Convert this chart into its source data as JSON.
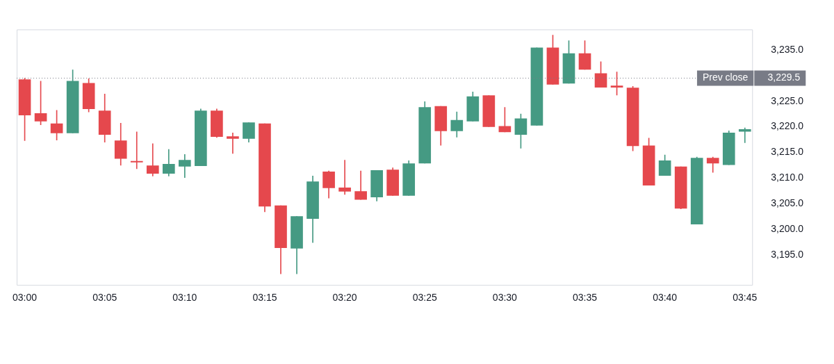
{
  "chart_data": {
    "type": "candlestick",
    "categories": [
      "03:00",
      null,
      null,
      null,
      null,
      "03:05",
      null,
      null,
      null,
      null,
      "03:10",
      null,
      null,
      null,
      null,
      "03:15",
      null,
      null,
      null,
      null,
      "03:20",
      null,
      null,
      null,
      null,
      "03:25",
      null,
      null,
      null,
      null,
      "03:30",
      null,
      null,
      null,
      null,
      "03:35",
      null,
      null,
      null,
      null,
      "03:40",
      null,
      null,
      null,
      null,
      "03:45"
    ],
    "ohlc": [
      [
        3229.2,
        3229.5,
        3217.3,
        3222.3
      ],
      [
        3222.6,
        3228.9,
        3220.4,
        3221.1
      ],
      [
        3220.6,
        3223.2,
        3217.4,
        3218.8
      ],
      [
        3218.8,
        3231.1,
        3218.8,
        3228.9
      ],
      [
        3228.5,
        3229.4,
        3222.9,
        3223.5
      ],
      [
        3223.1,
        3226.4,
        3217.0,
        3218.5
      ],
      [
        3217.3,
        3220.7,
        3212.5,
        3213.8
      ],
      [
        3213.3,
        3219.0,
        3211.8,
        3213.1
      ],
      [
        3212.4,
        3216.7,
        3210.4,
        3210.9
      ],
      [
        3210.9,
        3215.6,
        3210.4,
        3212.7
      ],
      [
        3212.3,
        3214.6,
        3210.1,
        3213.5
      ],
      [
        3212.4,
        3223.5,
        3212.4,
        3223.1
      ],
      [
        3223.1,
        3223.5,
        3217.9,
        3218.1
      ],
      [
        3218.1,
        3218.8,
        3214.8,
        3217.7
      ],
      [
        3217.7,
        3220.8,
        3217.0,
        3220.8
      ],
      [
        3220.6,
        3220.6,
        3203.4,
        3204.5
      ],
      [
        3204.6,
        3204.6,
        3191.3,
        3196.4
      ],
      [
        3196.3,
        3202.5,
        3191.3,
        3202.5
      ],
      [
        3202.1,
        3210.4,
        3197.4,
        3209.3
      ],
      [
        3211.2,
        3211.4,
        3206.1,
        3208.1
      ],
      [
        3208.1,
        3213.5,
        3206.8,
        3207.4
      ],
      [
        3207.4,
        3211.4,
        3205.8,
        3205.8
      ],
      [
        3206.3,
        3211.5,
        3205.5,
        3211.5
      ],
      [
        3211.6,
        3212.0,
        3206.6,
        3206.6
      ],
      [
        3206.6,
        3213.4,
        3206.6,
        3212.8
      ],
      [
        3212.9,
        3224.9,
        3212.9,
        3223.8
      ],
      [
        3224.0,
        3224.0,
        3216.4,
        3219.2
      ],
      [
        3219.2,
        3222.9,
        3218.0,
        3221.3
      ],
      [
        3221.1,
        3226.8,
        3221.1,
        3225.9
      ],
      [
        3226.1,
        3226.1,
        3220.0,
        3220.0
      ],
      [
        3220.1,
        3223.8,
        3219.0,
        3219.0
      ],
      [
        3218.5,
        3222.5,
        3215.8,
        3221.6
      ],
      [
        3220.3,
        3235.4,
        3220.3,
        3235.4
      ],
      [
        3235.4,
        3237.9,
        3228.3,
        3228.3
      ],
      [
        3228.5,
        3236.8,
        3228.5,
        3234.3
      ],
      [
        3234.3,
        3236.8,
        3231.2,
        3231.2
      ],
      [
        3230.4,
        3232.7,
        3227.7,
        3227.7
      ],
      [
        3228.0,
        3230.7,
        3226.2,
        3227.7
      ],
      [
        3227.6,
        3227.9,
        3215.3,
        3216.3
      ],
      [
        3216.3,
        3217.8,
        3208.6,
        3208.6
      ],
      [
        3210.5,
        3214.5,
        3210.5,
        3213.4
      ],
      [
        3212.2,
        3212.2,
        3204.0,
        3204.1
      ],
      [
        3201.0,
        3214.1,
        3201.0,
        3213.9
      ],
      [
        3213.9,
        3214.1,
        3211.1,
        3212.9
      ],
      [
        3212.6,
        3219.2,
        3212.6,
        3218.8
      ],
      [
        3219.1,
        3219.8,
        3216.9,
        3219.5
      ]
    ],
    "colors": [
      "#e5484d",
      "#e5484d",
      "#e5484d",
      "#459a83",
      "#e5484d",
      "#e5484d",
      "#e5484d",
      "#e5484d",
      "#e5484d",
      "#459a83",
      "#459a83",
      "#459a83",
      "#e5484d",
      "#e5484d",
      "#459a83",
      "#e5484d",
      "#e5484d",
      "#459a83",
      "#459a83",
      "#e5484d",
      "#e5484d",
      "#e5484d",
      "#459a83",
      "#e5484d",
      "#459a83",
      "#459a83",
      "#e5484d",
      "#459a83",
      "#459a83",
      "#e5484d",
      "#e5484d",
      "#459a83",
      "#459a83",
      "#e5484d",
      "#459a83",
      "#e5484d",
      "#e5484d",
      "#e5484d",
      "#e5484d",
      "#e5484d",
      "#459a83",
      "#e5484d",
      "#459a83",
      "#e5484d",
      "#459a83",
      "#459a83"
    ],
    "ylim": [
      3189,
      3239
    ],
    "yticks": [
      {
        "value": 3195,
        "label": "3,195.0"
      },
      {
        "value": 3200,
        "label": "3,200.0"
      },
      {
        "value": 3205,
        "label": "3,205.0"
      },
      {
        "value": 3210,
        "label": "3,210.0"
      },
      {
        "value": 3215,
        "label": "3,215.0"
      },
      {
        "value": 3220,
        "label": "3,220.0"
      },
      {
        "value": 3225,
        "label": "3,225.0"
      },
      {
        "value": 3235,
        "label": "3,235.0"
      }
    ],
    "ref_lines": [
      {
        "axis": "y",
        "value": 3229.5,
        "label": "Prev close",
        "color": "#787b86",
        "line_style": "dotted"
      }
    ],
    "annotations": [
      "3,229.5"
    ],
    "grid": false,
    "legend": false
  }
}
